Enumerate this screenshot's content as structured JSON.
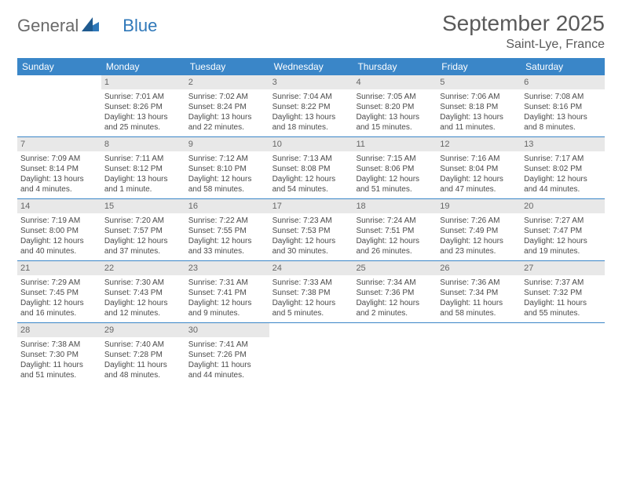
{
  "logo": {
    "text_general": "General",
    "text_blue": "Blue"
  },
  "title": "September 2025",
  "location": "Saint-Lye, France",
  "colors": {
    "header_bg": "#3a86c8",
    "header_text": "#ffffff",
    "daynum_bg": "#e8e8e8",
    "border": "#3a86c8",
    "text": "#4a4a4a",
    "logo_gray": "#6a6a6a",
    "logo_blue": "#2f78b9",
    "background": "#ffffff"
  },
  "typography": {
    "title_fontsize": 28,
    "location_fontsize": 16,
    "weekday_fontsize": 12,
    "cell_fontsize": 10,
    "daynum_fontsize": 11
  },
  "weekdays": [
    "Sunday",
    "Monday",
    "Tuesday",
    "Wednesday",
    "Thursday",
    "Friday",
    "Saturday"
  ],
  "weeks": [
    [
      null,
      {
        "n": "1",
        "sr": "Sunrise: 7:01 AM",
        "ss": "Sunset: 8:26 PM",
        "dl": "Daylight: 13 hours and 25 minutes."
      },
      {
        "n": "2",
        "sr": "Sunrise: 7:02 AM",
        "ss": "Sunset: 8:24 PM",
        "dl": "Daylight: 13 hours and 22 minutes."
      },
      {
        "n": "3",
        "sr": "Sunrise: 7:04 AM",
        "ss": "Sunset: 8:22 PM",
        "dl": "Daylight: 13 hours and 18 minutes."
      },
      {
        "n": "4",
        "sr": "Sunrise: 7:05 AM",
        "ss": "Sunset: 8:20 PM",
        "dl": "Daylight: 13 hours and 15 minutes."
      },
      {
        "n": "5",
        "sr": "Sunrise: 7:06 AM",
        "ss": "Sunset: 8:18 PM",
        "dl": "Daylight: 13 hours and 11 minutes."
      },
      {
        "n": "6",
        "sr": "Sunrise: 7:08 AM",
        "ss": "Sunset: 8:16 PM",
        "dl": "Daylight: 13 hours and 8 minutes."
      }
    ],
    [
      {
        "n": "7",
        "sr": "Sunrise: 7:09 AM",
        "ss": "Sunset: 8:14 PM",
        "dl": "Daylight: 13 hours and 4 minutes."
      },
      {
        "n": "8",
        "sr": "Sunrise: 7:11 AM",
        "ss": "Sunset: 8:12 PM",
        "dl": "Daylight: 13 hours and 1 minute."
      },
      {
        "n": "9",
        "sr": "Sunrise: 7:12 AM",
        "ss": "Sunset: 8:10 PM",
        "dl": "Daylight: 12 hours and 58 minutes."
      },
      {
        "n": "10",
        "sr": "Sunrise: 7:13 AM",
        "ss": "Sunset: 8:08 PM",
        "dl": "Daylight: 12 hours and 54 minutes."
      },
      {
        "n": "11",
        "sr": "Sunrise: 7:15 AM",
        "ss": "Sunset: 8:06 PM",
        "dl": "Daylight: 12 hours and 51 minutes."
      },
      {
        "n": "12",
        "sr": "Sunrise: 7:16 AM",
        "ss": "Sunset: 8:04 PM",
        "dl": "Daylight: 12 hours and 47 minutes."
      },
      {
        "n": "13",
        "sr": "Sunrise: 7:17 AM",
        "ss": "Sunset: 8:02 PM",
        "dl": "Daylight: 12 hours and 44 minutes."
      }
    ],
    [
      {
        "n": "14",
        "sr": "Sunrise: 7:19 AM",
        "ss": "Sunset: 8:00 PM",
        "dl": "Daylight: 12 hours and 40 minutes."
      },
      {
        "n": "15",
        "sr": "Sunrise: 7:20 AM",
        "ss": "Sunset: 7:57 PM",
        "dl": "Daylight: 12 hours and 37 minutes."
      },
      {
        "n": "16",
        "sr": "Sunrise: 7:22 AM",
        "ss": "Sunset: 7:55 PM",
        "dl": "Daylight: 12 hours and 33 minutes."
      },
      {
        "n": "17",
        "sr": "Sunrise: 7:23 AM",
        "ss": "Sunset: 7:53 PM",
        "dl": "Daylight: 12 hours and 30 minutes."
      },
      {
        "n": "18",
        "sr": "Sunrise: 7:24 AM",
        "ss": "Sunset: 7:51 PM",
        "dl": "Daylight: 12 hours and 26 minutes."
      },
      {
        "n": "19",
        "sr": "Sunrise: 7:26 AM",
        "ss": "Sunset: 7:49 PM",
        "dl": "Daylight: 12 hours and 23 minutes."
      },
      {
        "n": "20",
        "sr": "Sunrise: 7:27 AM",
        "ss": "Sunset: 7:47 PM",
        "dl": "Daylight: 12 hours and 19 minutes."
      }
    ],
    [
      {
        "n": "21",
        "sr": "Sunrise: 7:29 AM",
        "ss": "Sunset: 7:45 PM",
        "dl": "Daylight: 12 hours and 16 minutes."
      },
      {
        "n": "22",
        "sr": "Sunrise: 7:30 AM",
        "ss": "Sunset: 7:43 PM",
        "dl": "Daylight: 12 hours and 12 minutes."
      },
      {
        "n": "23",
        "sr": "Sunrise: 7:31 AM",
        "ss": "Sunset: 7:41 PM",
        "dl": "Daylight: 12 hours and 9 minutes."
      },
      {
        "n": "24",
        "sr": "Sunrise: 7:33 AM",
        "ss": "Sunset: 7:38 PM",
        "dl": "Daylight: 12 hours and 5 minutes."
      },
      {
        "n": "25",
        "sr": "Sunrise: 7:34 AM",
        "ss": "Sunset: 7:36 PM",
        "dl": "Daylight: 12 hours and 2 minutes."
      },
      {
        "n": "26",
        "sr": "Sunrise: 7:36 AM",
        "ss": "Sunset: 7:34 PM",
        "dl": "Daylight: 11 hours and 58 minutes."
      },
      {
        "n": "27",
        "sr": "Sunrise: 7:37 AM",
        "ss": "Sunset: 7:32 PM",
        "dl": "Daylight: 11 hours and 55 minutes."
      }
    ],
    [
      {
        "n": "28",
        "sr": "Sunrise: 7:38 AM",
        "ss": "Sunset: 7:30 PM",
        "dl": "Daylight: 11 hours and 51 minutes."
      },
      {
        "n": "29",
        "sr": "Sunrise: 7:40 AM",
        "ss": "Sunset: 7:28 PM",
        "dl": "Daylight: 11 hours and 48 minutes."
      },
      {
        "n": "30",
        "sr": "Sunrise: 7:41 AM",
        "ss": "Sunset: 7:26 PM",
        "dl": "Daylight: 11 hours and 44 minutes."
      },
      null,
      null,
      null,
      null
    ]
  ]
}
